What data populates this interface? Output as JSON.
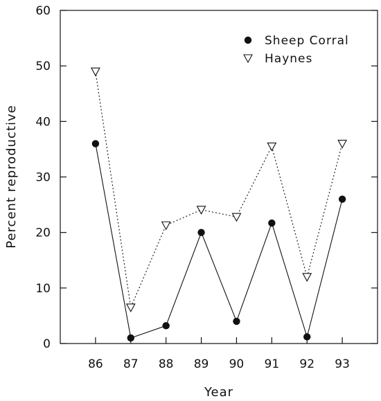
{
  "chart_data": {
    "type": "line",
    "xlabel": "Year",
    "ylabel": "Percent reproductive",
    "xlim": [
      85,
      94
    ],
    "ylim": [
      0,
      60
    ],
    "x_ticks": [
      86,
      87,
      88,
      89,
      90,
      91,
      92,
      93
    ],
    "y_ticks": [
      0,
      10,
      20,
      30,
      40,
      50,
      60
    ],
    "grid": false,
    "legend_position": "top-right",
    "x": [
      86,
      87,
      88,
      89,
      90,
      91,
      92,
      93
    ],
    "series": [
      {
        "name": "Sheep Corral",
        "marker": "filled-circle",
        "line_style": "solid",
        "values": [
          36,
          1,
          3.2,
          20,
          4,
          21.7,
          1.2,
          26
        ]
      },
      {
        "name": "Haynes",
        "marker": "open-triangle-down",
        "line_style": "dotted",
        "values": [
          49,
          6.5,
          21.3,
          24.1,
          22.8,
          35.5,
          12,
          36
        ]
      }
    ]
  }
}
